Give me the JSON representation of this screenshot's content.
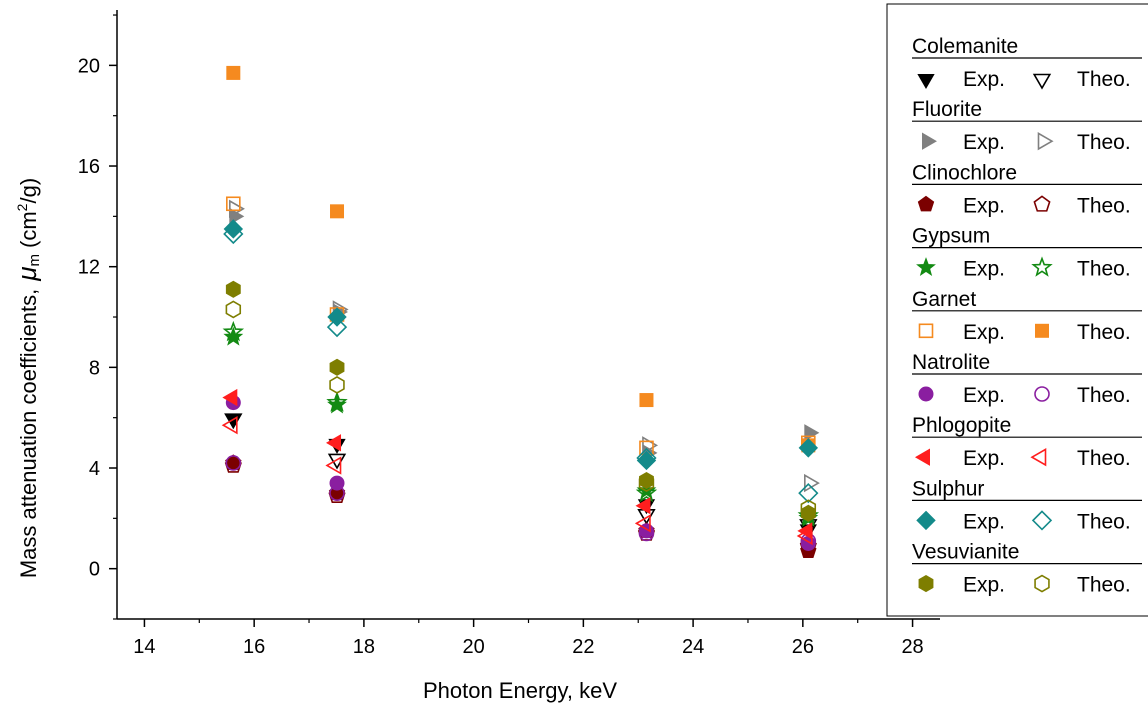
{
  "chart_data": {
    "type": "scatter",
    "xlabel": "Photon Energy, keV",
    "ylabel_main": "Mass attenuation coefficients,",
    "ylabel_symbol": "μ",
    "ylabel_sub": "m",
    "ylabel_unit_pre": "(cm",
    "ylabel_unit_sup": "2",
    "ylabel_unit_post": "/g)",
    "xlim": [
      13.5,
      28.5
    ],
    "ylim": [
      -2,
      22.2
    ],
    "xticks": [
      14,
      16,
      18,
      20,
      22,
      24,
      26,
      28
    ],
    "yticks": [
      0,
      4,
      8,
      12,
      16,
      20
    ],
    "x": [
      15.62,
      17.51,
      23.15,
      26.1
    ],
    "legend_placement": "right",
    "exp_label": "Exp.",
    "theo_label": "Theo.",
    "minerals": [
      {
        "name": "Colemanite",
        "color": "#000000",
        "exp": {
          "marker": "triangle-down",
          "filled": true,
          "values": [
            6.0,
            5.0,
            2.6,
            1.6
          ]
        },
        "theo": {
          "marker": "triangle-down",
          "filled": false,
          "values": [
            6.0,
            4.4,
            2.2,
            1.8
          ]
        }
      },
      {
        "name": "Fluorite",
        "color": "#808080",
        "exp": {
          "marker": "triangle-right",
          "filled": true,
          "values": [
            14.0,
            10.2,
            4.6,
            5.4
          ]
        },
        "theo": {
          "marker": "triangle-right",
          "filled": false,
          "values": [
            14.3,
            10.3,
            4.9,
            3.4
          ]
        }
      },
      {
        "name": "Clinochlore",
        "color": "#7b0000",
        "exp": {
          "marker": "pentagon",
          "filled": true,
          "values": [
            4.2,
            3.0,
            1.5,
            0.7
          ]
        },
        "theo": {
          "marker": "pentagon",
          "filled": false,
          "values": [
            4.1,
            2.9,
            1.4,
            0.9
          ]
        }
      },
      {
        "name": "Gypsum",
        "color": "#138a13",
        "exp": {
          "marker": "star",
          "filled": true,
          "values": [
            9.2,
            6.5,
            3.1,
            2.0
          ]
        },
        "theo": {
          "marker": "star",
          "filled": false,
          "values": [
            9.4,
            6.6,
            3.0,
            2.1
          ]
        }
      },
      {
        "name": "Garnet",
        "color": "#f58a1f",
        "exp": {
          "marker": "square",
          "filled": false,
          "values": [
            14.5,
            10.1,
            4.8,
            5.0
          ]
        },
        "theo": {
          "marker": "square",
          "filled": true,
          "values": [
            19.7,
            14.2,
            6.7,
            4.9
          ]
        }
      },
      {
        "name": "Natrolite",
        "color": "#8a1ea0",
        "exp": {
          "marker": "circle",
          "filled": true,
          "values": [
            6.6,
            3.4,
            1.5,
            1.0
          ]
        },
        "theo": {
          "marker": "circle",
          "filled": false,
          "values": [
            4.2,
            3.0,
            1.4,
            1.1
          ]
        }
      },
      {
        "name": "Phlogopite",
        "color": "#ff1e1e",
        "exp": {
          "marker": "triangle-left",
          "filled": true,
          "values": [
            6.8,
            5.0,
            2.5,
            1.5
          ]
        },
        "theo": {
          "marker": "triangle-left",
          "filled": false,
          "values": [
            5.7,
            4.1,
            1.8,
            1.3
          ]
        }
      },
      {
        "name": "Sulphur",
        "color": "#138a8a",
        "exp": {
          "marker": "diamond",
          "filled": true,
          "values": [
            13.5,
            10.0,
            4.3,
            4.8
          ]
        },
        "theo": {
          "marker": "diamond",
          "filled": false,
          "values": [
            13.3,
            9.6,
            4.4,
            3.0
          ]
        }
      },
      {
        "name": "Vesuvianite",
        "color": "#7e7e00",
        "exp": {
          "marker": "hexagon",
          "filled": true,
          "values": [
            11.1,
            8.0,
            3.5,
            2.2
          ]
        },
        "theo": {
          "marker": "hexagon",
          "filled": false,
          "values": [
            10.3,
            7.3,
            3.4,
            2.4
          ]
        }
      }
    ]
  }
}
